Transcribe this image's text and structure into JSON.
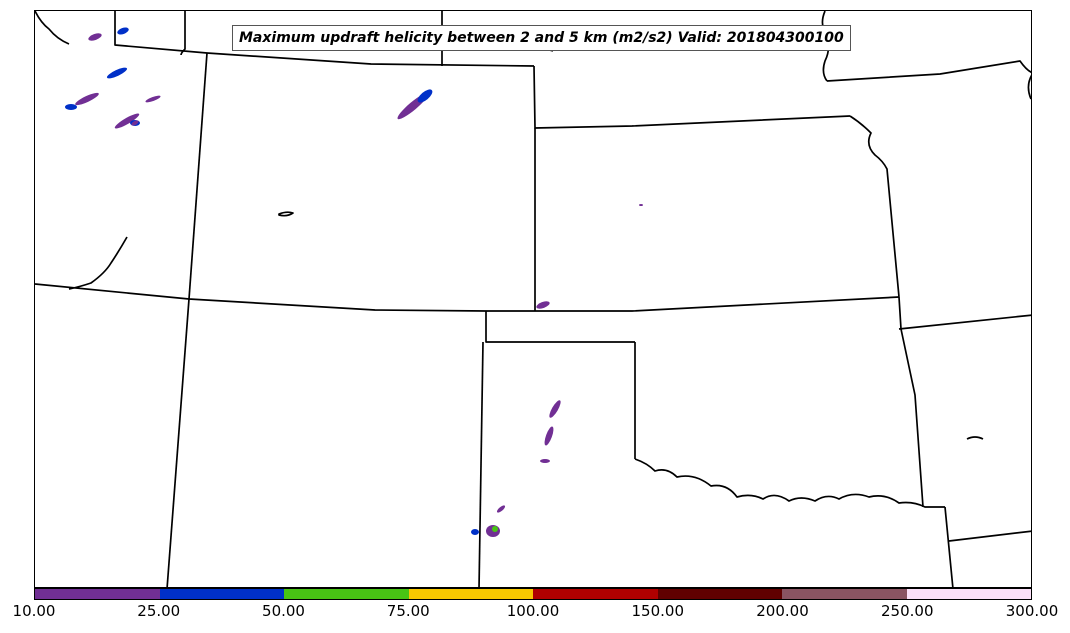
{
  "map": {
    "title": "Maximum updraft helicity between 2 and 5 km (m2/s2) Valid: 201804300100",
    "projection": "lambert-conformal",
    "region": "central-us-plains"
  },
  "colorbar": {
    "ticks": [
      "10.00",
      "25.00",
      "50.00",
      "75.00",
      "100.00",
      "150.00",
      "200.00",
      "250.00",
      "300.00"
    ],
    "colors": [
      "#712f94",
      "#0030c8",
      "#48c414",
      "#f7c800",
      "#b00000",
      "#600000",
      "#8a5462",
      "#fbe0f8"
    ]
  }
}
